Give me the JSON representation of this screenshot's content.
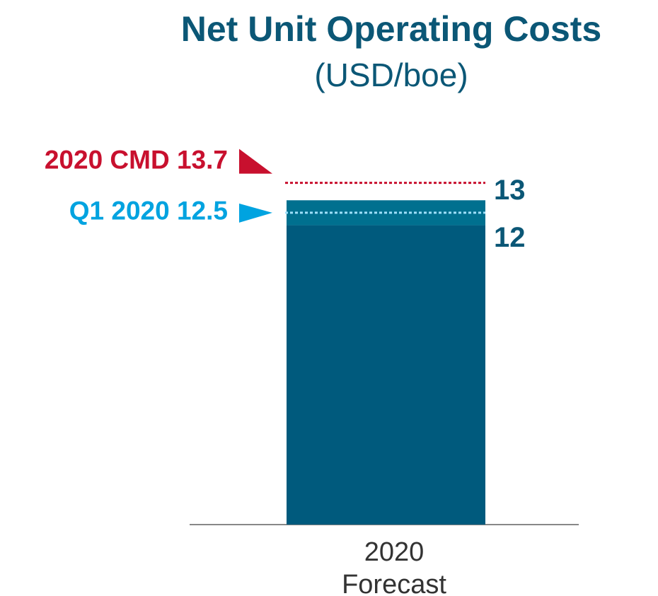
{
  "chart_data": {
    "type": "range_bar",
    "title": "Net Unit Operating Costs",
    "subtitle": "(USD/boe)",
    "categories": [
      "2020 Forecast"
    ],
    "low": [
      12
    ],
    "high": [
      13
    ],
    "color": "#005a7d",
    "range_color": "#00708f",
    "label_color": "#0b5776",
    "ylim": [
      0,
      14
    ],
    "reference_lines": [
      {
        "label": "2020 CMD 13.7",
        "value": 13.7,
        "color": "#c8102e",
        "line_color": "#c8102e"
      },
      {
        "label": "Q1 2020 12.5",
        "value": 12.5,
        "color": "#00a3e0",
        "line_color": "#9fe0fa"
      }
    ]
  }
}
